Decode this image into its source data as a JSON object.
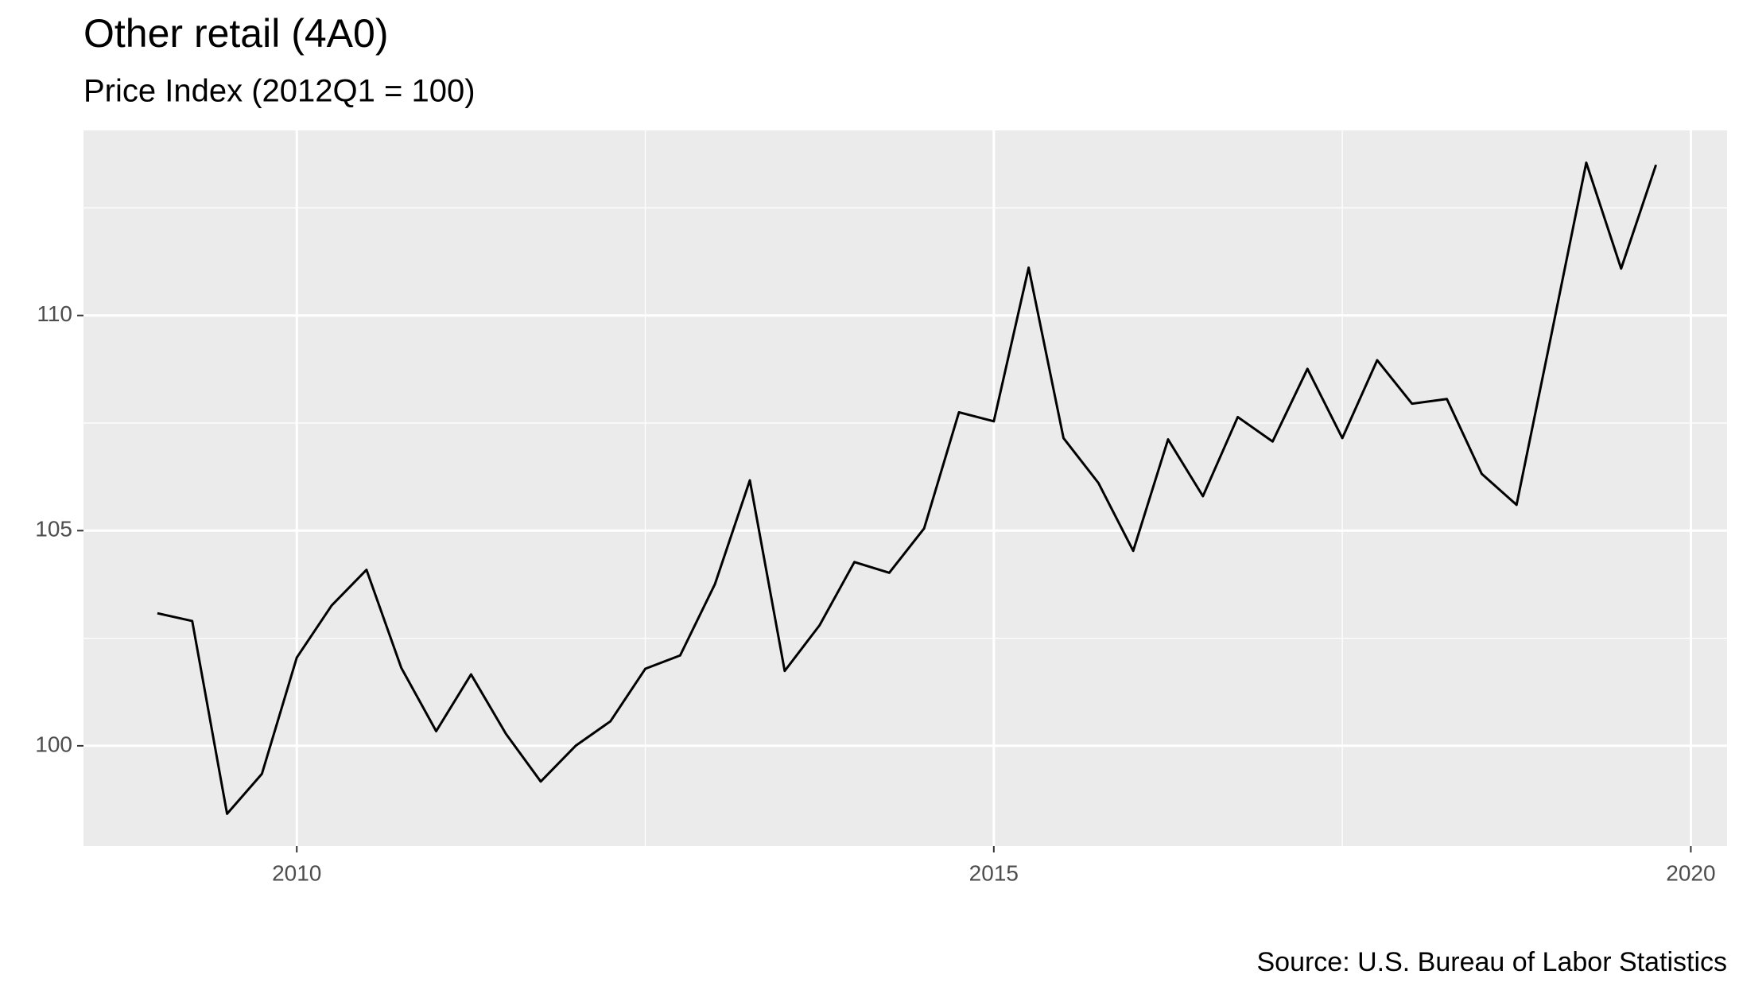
{
  "chart_data": {
    "type": "line",
    "title": "Other retail (4A0)",
    "subtitle": "Price Index (2012Q1 = 100)",
    "caption": "Source: U.S. Bureau of Labor Statistics",
    "x": [
      2009,
      2009.25,
      2009.5,
      2009.75,
      2010,
      2010.25,
      2010.5,
      2010.75,
      2011,
      2011.25,
      2011.5,
      2011.75,
      2012,
      2012.25,
      2012.5,
      2012.75,
      2013,
      2013.25,
      2013.5,
      2013.75,
      2014,
      2014.25,
      2014.5,
      2014.75,
      2015,
      2015.25,
      2015.5,
      2015.75,
      2016,
      2016.25,
      2016.5,
      2016.75,
      2017,
      2017.25,
      2017.5,
      2017.75,
      2018,
      2018.25,
      2018.5,
      2018.75,
      2019,
      2019.25,
      2019.5,
      2019.75
    ],
    "series": [
      {
        "color": "#000000",
        "values": [
          103.08,
          102.9,
          98.42,
          99.35,
          102.05,
          103.26,
          104.09,
          101.81,
          100.34,
          101.66,
          100.28,
          99.17,
          100.0,
          100.57,
          101.79,
          102.1,
          103.76,
          106.17,
          101.74,
          102.8,
          104.27,
          104.02,
          105.05,
          107.75,
          107.54,
          111.11,
          107.15,
          106.11,
          104.53,
          107.12,
          105.8,
          107.64,
          107.07,
          108.76,
          107.15,
          108.96,
          107.95,
          108.06,
          106.32,
          105.6,
          109.56,
          113.55,
          111.09,
          113.5
        ]
      }
    ],
    "xlim": [
      2008.47,
      2020.26
    ],
    "xticks": [
      2010,
      2015,
      2020
    ],
    "minor_xticks": [
      2012.5,
      2017.5
    ],
    "ylim": [
      97.67,
      114.3
    ],
    "yticks": [
      100,
      105,
      110
    ],
    "minor_yticks": [
      102.5,
      107.5,
      112.5
    ],
    "grid": true
  }
}
